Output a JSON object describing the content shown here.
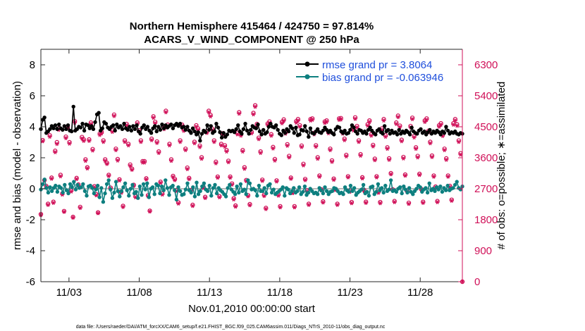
{
  "footer_text": "data file: /Users/raeder/DAI/ATM_forcXX/CAM6_setup/f.e21.FHIST_BGC.f09_025.CAM6assim.011/Diags_NTrS_2010-11/obs_diag_output.nc",
  "colors": {
    "rmse": "#000000",
    "bias": "#0d7f7f",
    "obs": "#d01058",
    "legend_text": "#1f4fdc",
    "zero_line": "#b8b8b8"
  },
  "chart_data": {
    "type": "line",
    "title_line1": "Northern Hemisphere 415464 / 424750 = 97.814%",
    "title_line2": "ACARS_V_WIND_COMPONENT @ 250 hPa",
    "xlabel": "Nov.01,2010 00:00:00 start",
    "ylabel_left": "rmse and bias (model - observation)",
    "ylabel_right": "# of obs: o=possible; ∗=assimilated",
    "x_range": [
      1.0,
      31.0
    ],
    "x_ticks": [
      3,
      8,
      13,
      18,
      23,
      28
    ],
    "x_tick_labels": [
      "11/03",
      "11/08",
      "11/13",
      "11/18",
      "11/23",
      "11/28"
    ],
    "ylim_left": [
      -6,
      9
    ],
    "y_ticks_left": [
      -6,
      -4,
      -2,
      0,
      2,
      4,
      6,
      8
    ],
    "y_tick_labels_left": [
      "-6",
      "-4",
      "-2",
      "0",
      "2",
      "4",
      "6",
      "8"
    ],
    "ylim_right": [
      0,
      6750
    ],
    "y_ticks_right": [
      0,
      900,
      1800,
      2700,
      3600,
      4500,
      5400,
      6300
    ],
    "y_tick_labels_right": [
      "0",
      "900",
      "1800",
      "2700",
      "3600",
      "4500",
      "5400",
      "6300"
    ],
    "legend": [
      {
        "label": "rmse grand pr = 3.8064"
      },
      {
        "label": "bias grand pr = -0.063946"
      }
    ],
    "series": [
      {
        "name": "rmse",
        "values": [
          3.85,
          4.45,
          4.6,
          3.6,
          3.7,
          3.85,
          4.05,
          3.9,
          4.1,
          3.85,
          4.15,
          3.9,
          3.8,
          4.05,
          3.85,
          4.1,
          3.75,
          3.7,
          5.3,
          3.75,
          3.85,
          4.0,
          3.95,
          4.2,
          3.75,
          4.15,
          4.1,
          3.9,
          4.05,
          3.85,
          4.3,
          4.8,
          4.9,
          3.75,
          3.9,
          4.3,
          4.2,
          3.95,
          3.85,
          4.0,
          4.1,
          3.75,
          4.15,
          3.95,
          4.05,
          3.85,
          4.2,
          3.9,
          3.8,
          4.0,
          3.75,
          4.05,
          3.85,
          4.1,
          3.7,
          3.55,
          3.95,
          4.1,
          3.85,
          4.0,
          3.75,
          3.6,
          3.9,
          4.05,
          3.7,
          4.0,
          3.8,
          4.15,
          3.9,
          4.1,
          3.95,
          4.05,
          4.15,
          3.9,
          4.1,
          4.2,
          4.05,
          4.2,
          3.95,
          4.0,
          3.8,
          4.0,
          3.75,
          3.6,
          3.9,
          3.7,
          3.5,
          3.65,
          3.1,
          3.55,
          3.75,
          3.65,
          4.1,
          3.8,
          4.05,
          3.6,
          3.7,
          4.2,
          3.95,
          3.65,
          3.3,
          3.6,
          3.35,
          3.5,
          3.75,
          3.7,
          3.75,
          3.65,
          3.85,
          4.1,
          3.7,
          3.55,
          3.85,
          4.2,
          3.75,
          3.55,
          3.8,
          4.05,
          3.95,
          3.9,
          4.15,
          3.7,
          3.5,
          3.8,
          3.55,
          3.65,
          4.0,
          4.2,
          4.0,
          3.95,
          4.1,
          3.8,
          3.55,
          3.45,
          3.75,
          3.6,
          3.85,
          3.7,
          4.05,
          3.9,
          3.6,
          3.95,
          3.45,
          3.5,
          3.8,
          3.75,
          4.05,
          3.7,
          3.35,
          3.9,
          3.6,
          3.55,
          3.7,
          3.85,
          3.65,
          3.6,
          3.75,
          3.95,
          3.8,
          3.65,
          3.75,
          3.6,
          3.5,
          3.85,
          4.0,
          3.95,
          3.7,
          3.6,
          3.75,
          3.55,
          3.6,
          3.8,
          4.1,
          3.95,
          3.7,
          3.55,
          3.8,
          3.75,
          3.6,
          3.7,
          3.55,
          3.8,
          3.95,
          3.75,
          3.6,
          3.5,
          3.75,
          3.85,
          3.65,
          3.55,
          4.05,
          3.7,
          3.8,
          3.55,
          3.75,
          3.6,
          3.65,
          3.5,
          3.8,
          3.55,
          3.7,
          3.6,
          3.75,
          3.65,
          3.5,
          3.95,
          3.7,
          3.6,
          3.55,
          3.75,
          3.85,
          3.6,
          3.7,
          3.5,
          3.65,
          3.8,
          3.55,
          3.7,
          3.6,
          3.75,
          3.65,
          3.5,
          3.7,
          3.6,
          4.0,
          3.75,
          3.55,
          3.65,
          3.6,
          3.7,
          3.55,
          3.5,
          3.6,
          3.55
        ]
      },
      {
        "name": "bias",
        "values": [
          -0.05,
          0.3,
          0.6,
          0.05,
          -0.25,
          0.1,
          -0.15,
          0.05,
          0.2,
          -0.2,
          0.15,
          0.05,
          -0.25,
          0.25,
          -0.1,
          -0.3,
          0.3,
          0.1,
          0.45,
          -0.05,
          0.25,
          0.05,
          0.1,
          0.3,
          -0.15,
          -0.45,
          0.15,
          0.2,
          0.05,
          -0.3,
          -0.05,
          0.2,
          -0.55,
          0.05,
          -0.85,
          -0.3,
          0.3,
          0.55,
          -0.05,
          -0.6,
          -0.25,
          0.45,
          -0.15,
          -0.5,
          -0.15,
          0.1,
          0.35,
          -0.1,
          -0.45,
          0.0,
          0.25,
          -0.3,
          -0.2,
          -0.6,
          0.15,
          -0.4,
          0.3,
          -0.05,
          0.35,
          -0.55,
          0.0,
          0.1,
          -0.35,
          0.3,
          0.2,
          -0.3,
          0.15,
          -0.1,
          0.55,
          0.05,
          -0.4,
          0.1,
          0.2,
          -0.1,
          -0.7,
          0.1,
          -0.15,
          -0.4,
          -0.35,
          -0.05,
          0.35,
          -0.1,
          -0.25,
          0.1,
          -0.5,
          0.4,
          -0.35,
          -0.15,
          0.15,
          0.35,
          -0.05,
          -0.15,
          0.2,
          -0.45,
          0.05,
          0.25,
          -0.3,
          0.05,
          -0.1,
          -0.2,
          -0.35,
          -0.5,
          0.05,
          0.25,
          -0.05,
          -0.2,
          -0.35,
          0.15,
          -0.25,
          0.3,
          -0.15,
          -0.05,
          -0.35,
          0.55,
          0.35,
          -0.05,
          0.0,
          -0.1,
          -0.45,
          0.2,
          -0.15,
          -0.15,
          0.05,
          -0.3,
          0.2,
          0.3,
          -0.25,
          -0.05,
          -0.35,
          -0.25,
          -0.15,
          -0.05,
          0.1,
          -0.45,
          0.05,
          -0.05,
          -0.3,
          -0.15,
          0.05,
          -0.25,
          -0.15,
          0.1,
          -0.35,
          -0.2,
          0.15,
          -0.4,
          -0.25,
          0.0,
          -0.15,
          -0.3,
          -0.25,
          -0.35,
          0.05,
          -0.1,
          -0.3,
          0.1,
          -0.15,
          -0.35,
          -0.2,
          -0.15,
          0.05,
          0.0,
          -0.15,
          -0.3,
          -0.25,
          -0.35,
          0.1,
          -0.1,
          -0.2,
          0.2,
          -0.15,
          0.05,
          -0.4,
          -0.25,
          -0.15,
          -0.05,
          0.25,
          -0.3,
          -0.2,
          -0.45,
          0.1,
          0.15,
          -0.35,
          -0.2,
          0.3,
          -0.1,
          0.05,
          -0.25,
          0.2,
          -0.15,
          -0.05,
          0.55,
          -0.15,
          -0.1,
          -0.2,
          0.0,
          0.1,
          -0.3,
          0.15,
          -0.05,
          -0.25,
          0.05,
          -0.2,
          -0.35,
          -0.15,
          0.0,
          0.2,
          0.1,
          -0.2,
          -0.05,
          0.05,
          -0.25,
          0.35,
          -0.1,
          0.0,
          -0.15,
          0.1,
          -0.05,
          0.15,
          -0.2,
          0.05,
          -0.1,
          0.2,
          -0.1,
          0.0,
          0.05,
          0.25,
          0.45,
          0.05,
          -0.05,
          0.15
        ]
      },
      {
        "name": "obs_possible",
        "values": [
          1960,
          4110,
          2950,
          2780,
          2260,
          4250,
          3020,
          2320,
          3800,
          4050,
          4450,
          3100,
          2560,
          2050,
          4210,
          4510,
          4050,
          2650,
          1880,
          4660,
          3010,
          2820,
          2170,
          4200,
          4130,
          3550,
          3320,
          4130,
          4620,
          3850,
          2770,
          2540,
          2010,
          4300,
          4350,
          4100,
          3550,
          3450,
          3100,
          2730,
          4390,
          4850,
          3860,
          3560,
          2970,
          2610,
          2200,
          4100,
          4580,
          4000,
          3400,
          3280,
          2810,
          2480,
          4620,
          4400,
          4100,
          3500,
          3500,
          3000,
          2510,
          2060,
          4150,
          4800,
          4640,
          4070,
          3780,
          2900,
          2560,
          4470,
          4960,
          4560,
          4000,
          3550,
          3070,
          2980,
          2660,
          2300,
          4100,
          4560,
          4420,
          3860,
          3310,
          3010,
          2660,
          2230,
          4060,
          4540,
          4450,
          3950,
          3610,
          2750,
          2460,
          4360,
          4960,
          4840,
          4440,
          4100,
          3480,
          3050,
          2480,
          4000,
          4310,
          3960,
          3820,
          3510,
          3050,
          2850,
          2420,
          2210,
          4320,
          4920,
          4280,
          3820,
          3320,
          2950,
          2510,
          2250,
          4350,
          4900,
          5120,
          4580,
          4180,
          3780,
          2960,
          2520,
          2140,
          4590,
          4650,
          4280,
          3910,
          3560,
          2940,
          2530,
          2190,
          4640,
          4710,
          4340,
          3990,
          3650,
          3020,
          2600,
          2190,
          4660,
          4720,
          4540,
          3950,
          3420,
          2980,
          2650,
          2260,
          4720,
          4740,
          4320,
          3960,
          3610,
          3080,
          2680,
          2330,
          4650,
          4680,
          4350,
          3860,
          3520,
          2990,
          2690,
          2260,
          4740,
          4750,
          4340,
          4150,
          3680,
          3060,
          2640,
          2310,
          4430,
          4770,
          4520,
          4100,
          3700,
          3030,
          2660,
          2320,
          4570,
          4680,
          4280,
          3970,
          3570,
          3060,
          2610,
          2310,
          4450,
          4720,
          4250,
          3900,
          3580,
          3150,
          2680,
          2340,
          4620,
          4820,
          4530,
          4120,
          3620,
          3110,
          2640,
          2290,
          4520,
          4760,
          4230,
          3900,
          3650,
          3130,
          2690,
          2320,
          4680,
          4740,
          4380,
          4060,
          3660,
          3080,
          2760,
          2340,
          4540,
          4600,
          4270,
          3860,
          3580,
          3080,
          2780,
          2380,
          4600,
          4720,
          4570,
          4100,
          3730,
          0
        ]
      },
      {
        "name": "obs_assimilated",
        "values": [
          1940,
          4080,
          2930,
          2750,
          2230,
          4210,
          2990,
          2290,
          3760,
          4000,
          4410,
          3060,
          2530,
          2030,
          4170,
          4470,
          4010,
          2620,
          1860,
          4620,
          2980,
          2790,
          2140,
          4160,
          4090,
          3510,
          3290,
          4090,
          4580,
          3810,
          2740,
          2510,
          1990,
          4260,
          4310,
          4060,
          3510,
          3420,
          3070,
          2700,
          4350,
          4810,
          3820,
          3520,
          2940,
          2580,
          2170,
          4060,
          4540,
          3960,
          3360,
          3250,
          2780,
          2450,
          4580,
          4360,
          4060,
          3460,
          3460,
          2970,
          2480,
          2040,
          4110,
          4760,
          4600,
          4030,
          3740,
          2870,
          2530,
          4430,
          4920,
          4520,
          3960,
          3510,
          3040,
          2950,
          2630,
          2270,
          4060,
          4520,
          4380,
          3820,
          3270,
          2980,
          2630,
          2200,
          4020,
          4500,
          4410,
          3910,
          3570,
          2720,
          2430,
          4320,
          4920,
          4800,
          4400,
          4060,
          3440,
          3020,
          2450,
          3960,
          4270,
          3920,
          3780,
          3470,
          3020,
          2820,
          2390,
          2180,
          4280,
          4880,
          4240,
          3780,
          3280,
          2920,
          2480,
          2220,
          4310,
          4860,
          5080,
          4540,
          4140,
          3740,
          2930,
          2490,
          2110,
          4550,
          4610,
          4240,
          3870,
          3520,
          2910,
          2500,
          2160,
          4600,
          4670,
          4300,
          3950,
          3610,
          2990,
          2570,
          2160,
          4620,
          4680,
          4500,
          3910,
          3380,
          2950,
          2620,
          2230,
          4680,
          4700,
          4280,
          3920,
          3570,
          3050,
          2650,
          2300,
          4610,
          4640,
          4310,
          3820,
          3480,
          2960,
          2660,
          2230,
          4700,
          4710,
          4300,
          4110,
          3640,
          3030,
          2610,
          2280,
          4390,
          4730,
          4480,
          4060,
          3660,
          3000,
          2630,
          2290,
          4530,
          4640,
          4240,
          3930,
          3530,
          3030,
          2580,
          2280,
          4410,
          4680,
          4210,
          3860,
          3540,
          3120,
          2650,
          2310,
          4580,
          4780,
          4490,
          4080,
          3580,
          3080,
          2610,
          2260,
          4480,
          4720,
          4190,
          3860,
          3610,
          3100,
          2660,
          2290,
          4640,
          4700,
          4340,
          4020,
          3620,
          3050,
          2730,
          2310,
          4500,
          4560,
          4230,
          3820,
          3540,
          3050,
          2750,
          2350,
          4560,
          4680,
          4530,
          4060,
          3690,
          0
        ]
      }
    ]
  }
}
